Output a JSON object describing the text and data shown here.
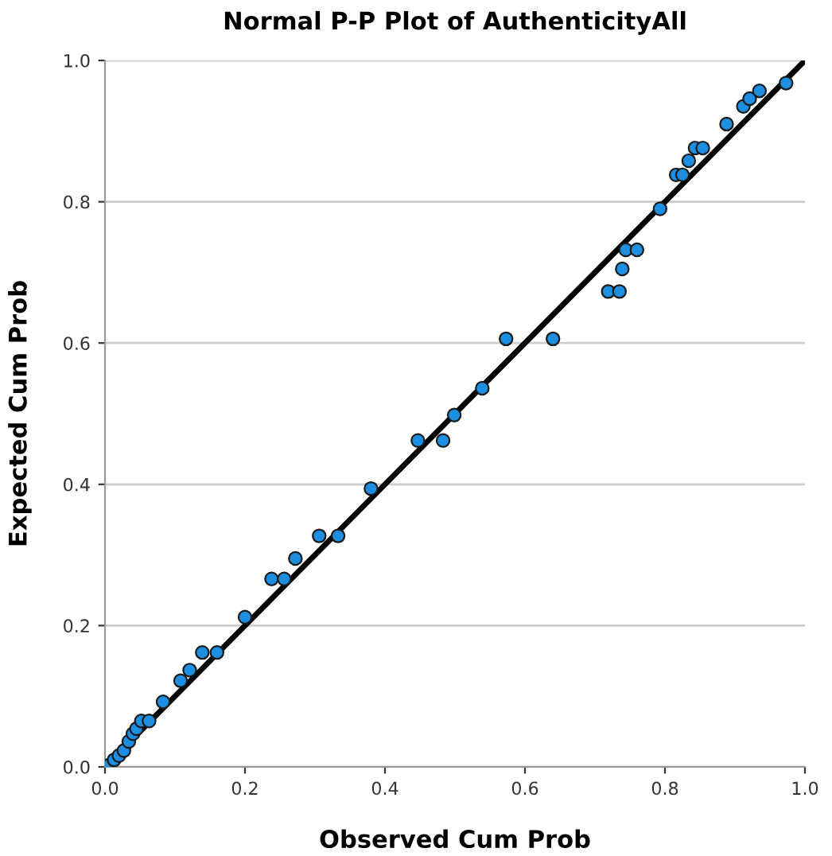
{
  "chart_data": {
    "type": "scatter",
    "title": "Normal P-P Plot of AuthenticityAll",
    "xlabel": "Observed Cum Prob",
    "ylabel": "Expected Cum Prob",
    "xlim": [
      0,
      1
    ],
    "ylim": [
      0,
      1
    ],
    "xticks": [
      {
        "value": 0,
        "label": "0.0"
      },
      0.2,
      0.4,
      0.6,
      0.8,
      {
        "value": 1,
        "label": "1.0"
      }
    ],
    "yticks": [
      {
        "value": 0,
        "label": "0.0"
      },
      0.2,
      0.4,
      0.6,
      0.8,
      {
        "value": 1,
        "label": "1.0"
      }
    ],
    "grid": "y",
    "series": [
      {
        "marker": "circle",
        "color": "#1e8fe0",
        "x": [
          0.005,
          0.013,
          0.02,
          0.027,
          0.034,
          0.04,
          0.045,
          0.052,
          0.063,
          0.083,
          0.108,
          0.121,
          0.139,
          0.16,
          0.2,
          0.238,
          0.256,
          0.272,
          0.306,
          0.333,
          0.38,
          0.447,
          0.483,
          0.499,
          0.539,
          0.573,
          0.64,
          0.719,
          0.735,
          0.739,
          0.744,
          0.76,
          0.793,
          0.816,
          0.825,
          0.834,
          0.843,
          0.854,
          0.888,
          0.912,
          0.921,
          0.935,
          0.973
        ],
        "values": [
          0.002,
          0.01,
          0.016,
          0.023,
          0.036,
          0.047,
          0.054,
          0.065,
          0.065,
          0.092,
          0.122,
          0.137,
          0.162,
          0.162,
          0.212,
          0.266,
          0.266,
          0.295,
          0.327,
          0.327,
          0.394,
          0.462,
          0.462,
          0.498,
          0.536,
          0.606,
          0.606,
          0.673,
          0.673,
          0.705,
          0.732,
          0.732,
          0.79,
          0.838,
          0.838,
          0.858,
          0.876,
          0.876,
          0.91,
          0.935,
          0.946,
          0.957,
          0.968
        ]
      },
      {
        "type": "line",
        "marker": "none",
        "color": "#000000",
        "x": [
          0,
          1
        ],
        "values": [
          0,
          1
        ]
      }
    ]
  }
}
